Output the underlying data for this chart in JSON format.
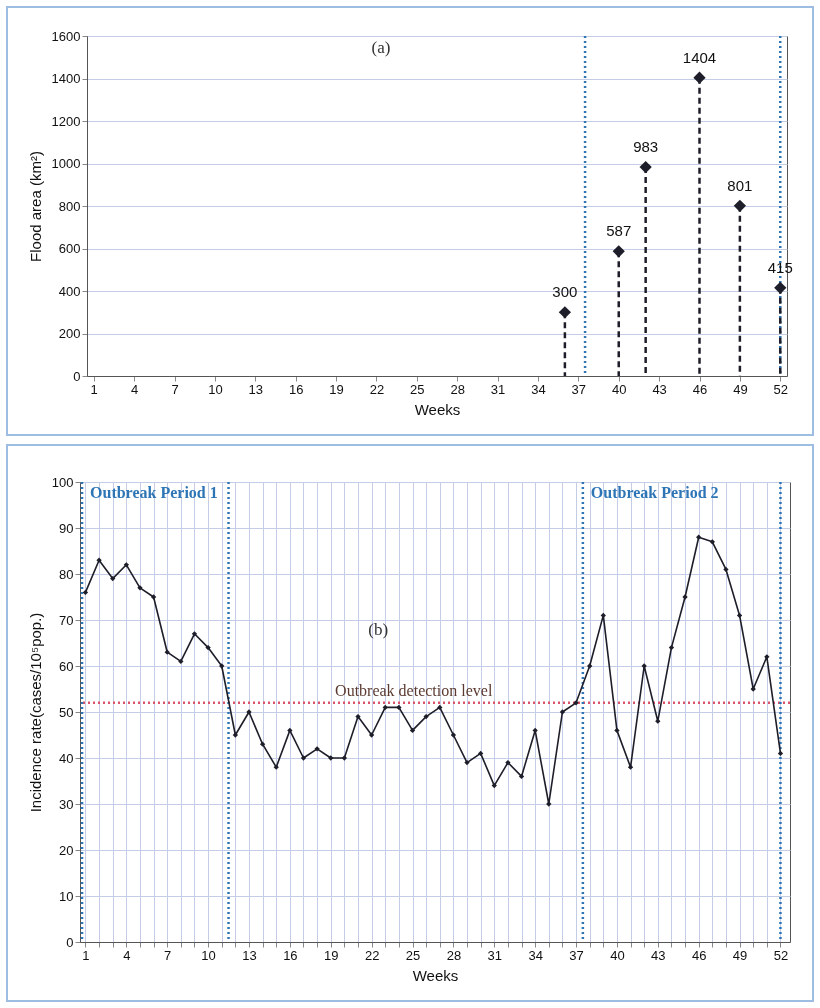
{
  "chart_data": [
    {
      "type": "lollipop",
      "xlabel": "Weeks",
      "ylabel": "Flood area (km²)",
      "annotations": [
        "(a)"
      ],
      "x": [
        36,
        40,
        42,
        46,
        49,
        52
      ],
      "series": [
        {
          "color": "#1e1e2a",
          "values": [
            300,
            587,
            983,
            1404,
            801,
            415
          ]
        }
      ],
      "xlim": [
        0.5,
        52.5
      ],
      "ylim": [
        0,
        1600
      ],
      "xticks": [
        1,
        4,
        7,
        10,
        13,
        16,
        19,
        22,
        25,
        28,
        31,
        34,
        37,
        40,
        43,
        46,
        49,
        52
      ],
      "yticks": [
        0,
        200,
        400,
        600,
        800,
        1000,
        1200,
        1400,
        1600
      ],
      "grid": "y",
      "marker": "diamond",
      "line_style": "dashed",
      "data_labels": true,
      "ref_lines": [
        {
          "axis": "x",
          "value": 37.5,
          "color": "#2e75b6",
          "line_style": "dotted"
        },
        {
          "axis": "x",
          "value": 52,
          "color": "#2e75b6",
          "line_style": "dotted"
        }
      ]
    },
    {
      "type": "line",
      "xlabel": "Weeks",
      "ylabel": "Incidence rate(cases/10⁵pop.)",
      "annotations": [
        "(b)"
      ],
      "x": [
        1,
        2,
        3,
        4,
        5,
        6,
        7,
        8,
        9,
        10,
        11,
        12,
        13,
        14,
        15,
        16,
        17,
        18,
        19,
        20,
        21,
        22,
        23,
        24,
        25,
        26,
        27,
        28,
        29,
        30,
        31,
        32,
        33,
        34,
        35,
        36,
        37,
        38,
        39,
        40,
        41,
        42,
        43,
        44,
        45,
        46,
        47,
        48,
        49,
        50,
        51,
        52
      ],
      "series": [
        {
          "color": "#1e1e2a",
          "values": [
            76,
            83,
            79,
            82,
            77,
            75,
            63,
            61,
            67,
            64,
            60,
            45,
            50,
            43,
            38,
            46,
            40,
            42,
            40,
            40,
            49,
            45,
            51,
            51,
            46,
            49,
            51,
            45,
            39,
            41,
            34,
            39,
            36,
            46,
            30,
            50,
            52,
            60,
            71,
            46,
            38,
            60,
            48,
            64,
            75,
            88,
            87,
            81,
            71,
            55,
            62,
            41
          ]
        }
      ],
      "xlim": [
        0.6,
        52.7
      ],
      "ylim": [
        0,
        100
      ],
      "xticks": [
        1,
        {
          "value": 2,
          "label": null
        },
        {
          "value": 3,
          "label": null
        },
        4,
        {
          "value": 5,
          "label": null
        },
        {
          "value": 6,
          "label": null
        },
        7,
        {
          "value": 8,
          "label": null
        },
        {
          "value": 9,
          "label": null
        },
        10,
        {
          "value": 11,
          "label": null
        },
        {
          "value": 12,
          "label": null
        },
        13,
        {
          "value": 14,
          "label": null
        },
        {
          "value": 15,
          "label": null
        },
        16,
        {
          "value": 17,
          "label": null
        },
        {
          "value": 18,
          "label": null
        },
        19,
        {
          "value": 20,
          "label": null
        },
        {
          "value": 21,
          "label": null
        },
        22,
        {
          "value": 23,
          "label": null
        },
        {
          "value": 24,
          "label": null
        },
        25,
        {
          "value": 26,
          "label": null
        },
        {
          "value": 27,
          "label": null
        },
        28,
        {
          "value": 29,
          "label": null
        },
        {
          "value": 30,
          "label": null
        },
        31,
        {
          "value": 32,
          "label": null
        },
        {
          "value": 33,
          "label": null
        },
        34,
        {
          "value": 35,
          "label": null
        },
        {
          "value": 36,
          "label": null
        },
        37,
        {
          "value": 38,
          "label": null
        },
        {
          "value": 39,
          "label": null
        },
        40,
        {
          "value": 41,
          "label": null
        },
        {
          "value": 42,
          "label": null
        },
        43,
        {
          "value": 44,
          "label": null
        },
        {
          "value": 45,
          "label": null
        },
        46,
        {
          "value": 47,
          "label": null
        },
        {
          "value": 48,
          "label": null
        },
        49,
        {
          "value": 50,
          "label": null
        },
        {
          "value": 51,
          "label": null
        },
        52
      ],
      "yticks": [
        0,
        10,
        20,
        30,
        40,
        50,
        60,
        70,
        80,
        90,
        100
      ],
      "grid": true,
      "marker": "diamond",
      "line_style": "solid",
      "ref_lines": [
        {
          "axis": "y",
          "value": 52,
          "label": "Outbreak detection level",
          "color": "#d9546b",
          "line_style": "dotted"
        },
        {
          "axis": "x",
          "value": 0.75,
          "label": "Outbreak Period 1",
          "color": "#2e75b6",
          "line_style": "dotted"
        },
        {
          "axis": "x",
          "value": 11.5,
          "color": "#2e75b6",
          "line_style": "dotted"
        },
        {
          "axis": "x",
          "value": 37.5,
          "label": "Outbreak Period 2",
          "color": "#2e75b6",
          "line_style": "dotted"
        },
        {
          "axis": "x",
          "value": 52,
          "color": "#2e75b6",
          "line_style": "dotted"
        }
      ]
    }
  ]
}
